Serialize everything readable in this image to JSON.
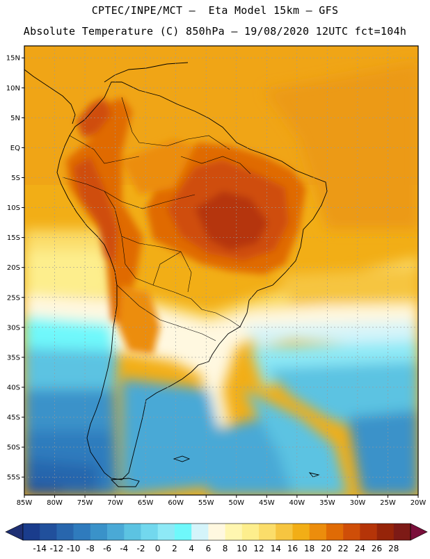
{
  "header": {
    "line1": "CPTEC/INPE/MCT –  Eta Model 15km – GFS",
    "line2": "Absolute Temperature (C) 850hPa – 19/08/2020 12UTC fct=104h"
  },
  "map": {
    "lon_range": [
      -85,
      -20
    ],
    "lat_range": [
      -58,
      17
    ],
    "lon_ticks": [
      "85W",
      "80W",
      "75W",
      "70W",
      "65W",
      "60W",
      "55W",
      "50W",
      "45W",
      "40W",
      "35W",
      "30W",
      "25W",
      "20W"
    ],
    "lat_ticks": [
      "15N",
      "10N",
      "5N",
      "EQ",
      "5S",
      "10S",
      "15S",
      "20S",
      "25S",
      "30S",
      "35S",
      "40S",
      "45S",
      "50S",
      "55S"
    ]
  },
  "colorbar": {
    "labels": [
      "-14",
      "-12",
      "-10",
      "-8",
      "-6",
      "-4",
      "-2",
      "0",
      "2",
      "4",
      "6",
      "8",
      "10",
      "12",
      "14",
      "16",
      "18",
      "20",
      "22",
      "24",
      "26",
      "28"
    ],
    "colors": [
      "#1a3c8c",
      "#21509c",
      "#2866ad",
      "#2f7bbd",
      "#3a92c9",
      "#4aa9d6",
      "#5cc3e2",
      "#72d8ee",
      "#8ee9f6",
      "#6ff8fb",
      "#d4f4fa",
      "#fff8e0",
      "#fff6b0",
      "#fdee8d",
      "#fbdd6a",
      "#f6c540",
      "#f2ae16",
      "#ec8d0c",
      "#e06b05",
      "#cf4e08",
      "#b53408",
      "#962409",
      "#7d1a16"
    ],
    "under_color": "#1e2f73",
    "over_color": "#7a0f3a"
  }
}
